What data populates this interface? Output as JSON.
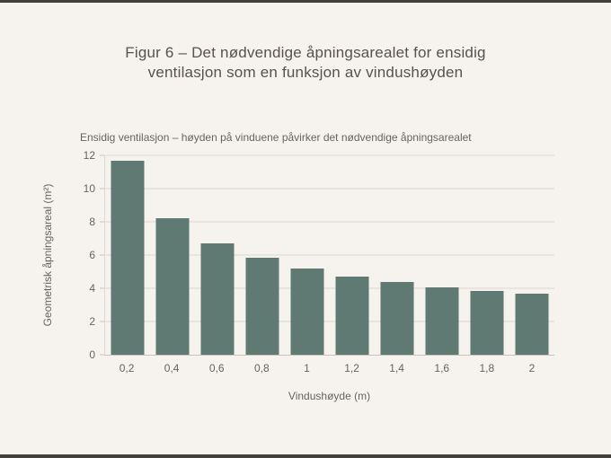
{
  "page": {
    "title_line1": "Figur 6 – Det nødvendige åpningsarealet for ensidig",
    "title_line2": "ventilasjon som en funksjon av vindushøyden"
  },
  "chart_data": {
    "type": "bar",
    "title": "Ensidig ventilasjon – høyden på vinduene påvirker det nødvendige åpningsarealet",
    "categories": [
      "0,2",
      "0,4",
      "0,6",
      "0,8",
      "1",
      "1,2",
      "1,4",
      "1,6",
      "1,8",
      "2"
    ],
    "values": [
      11.7,
      8.2,
      6.7,
      5.85,
      5.2,
      4.7,
      4.4,
      4.05,
      3.85,
      3.7
    ],
    "xlabel": "Vindushøyde (m)",
    "ylabel": "Geometrisk åpningsareal (m²)",
    "ylim": [
      0,
      12
    ],
    "yticks": [
      0,
      2,
      4,
      6,
      8,
      10,
      12
    ],
    "grid": "horizontal",
    "legend": "none",
    "bar_color": "#5e7a72"
  },
  "colors": {
    "background": "#f6f2ed",
    "bar": "#5e7a72",
    "gridline": "#dcd7d0",
    "axis": "#c9c4bc",
    "title_text": "#57534c",
    "label_text": "#67645d",
    "frame_edge": "#42403b"
  }
}
